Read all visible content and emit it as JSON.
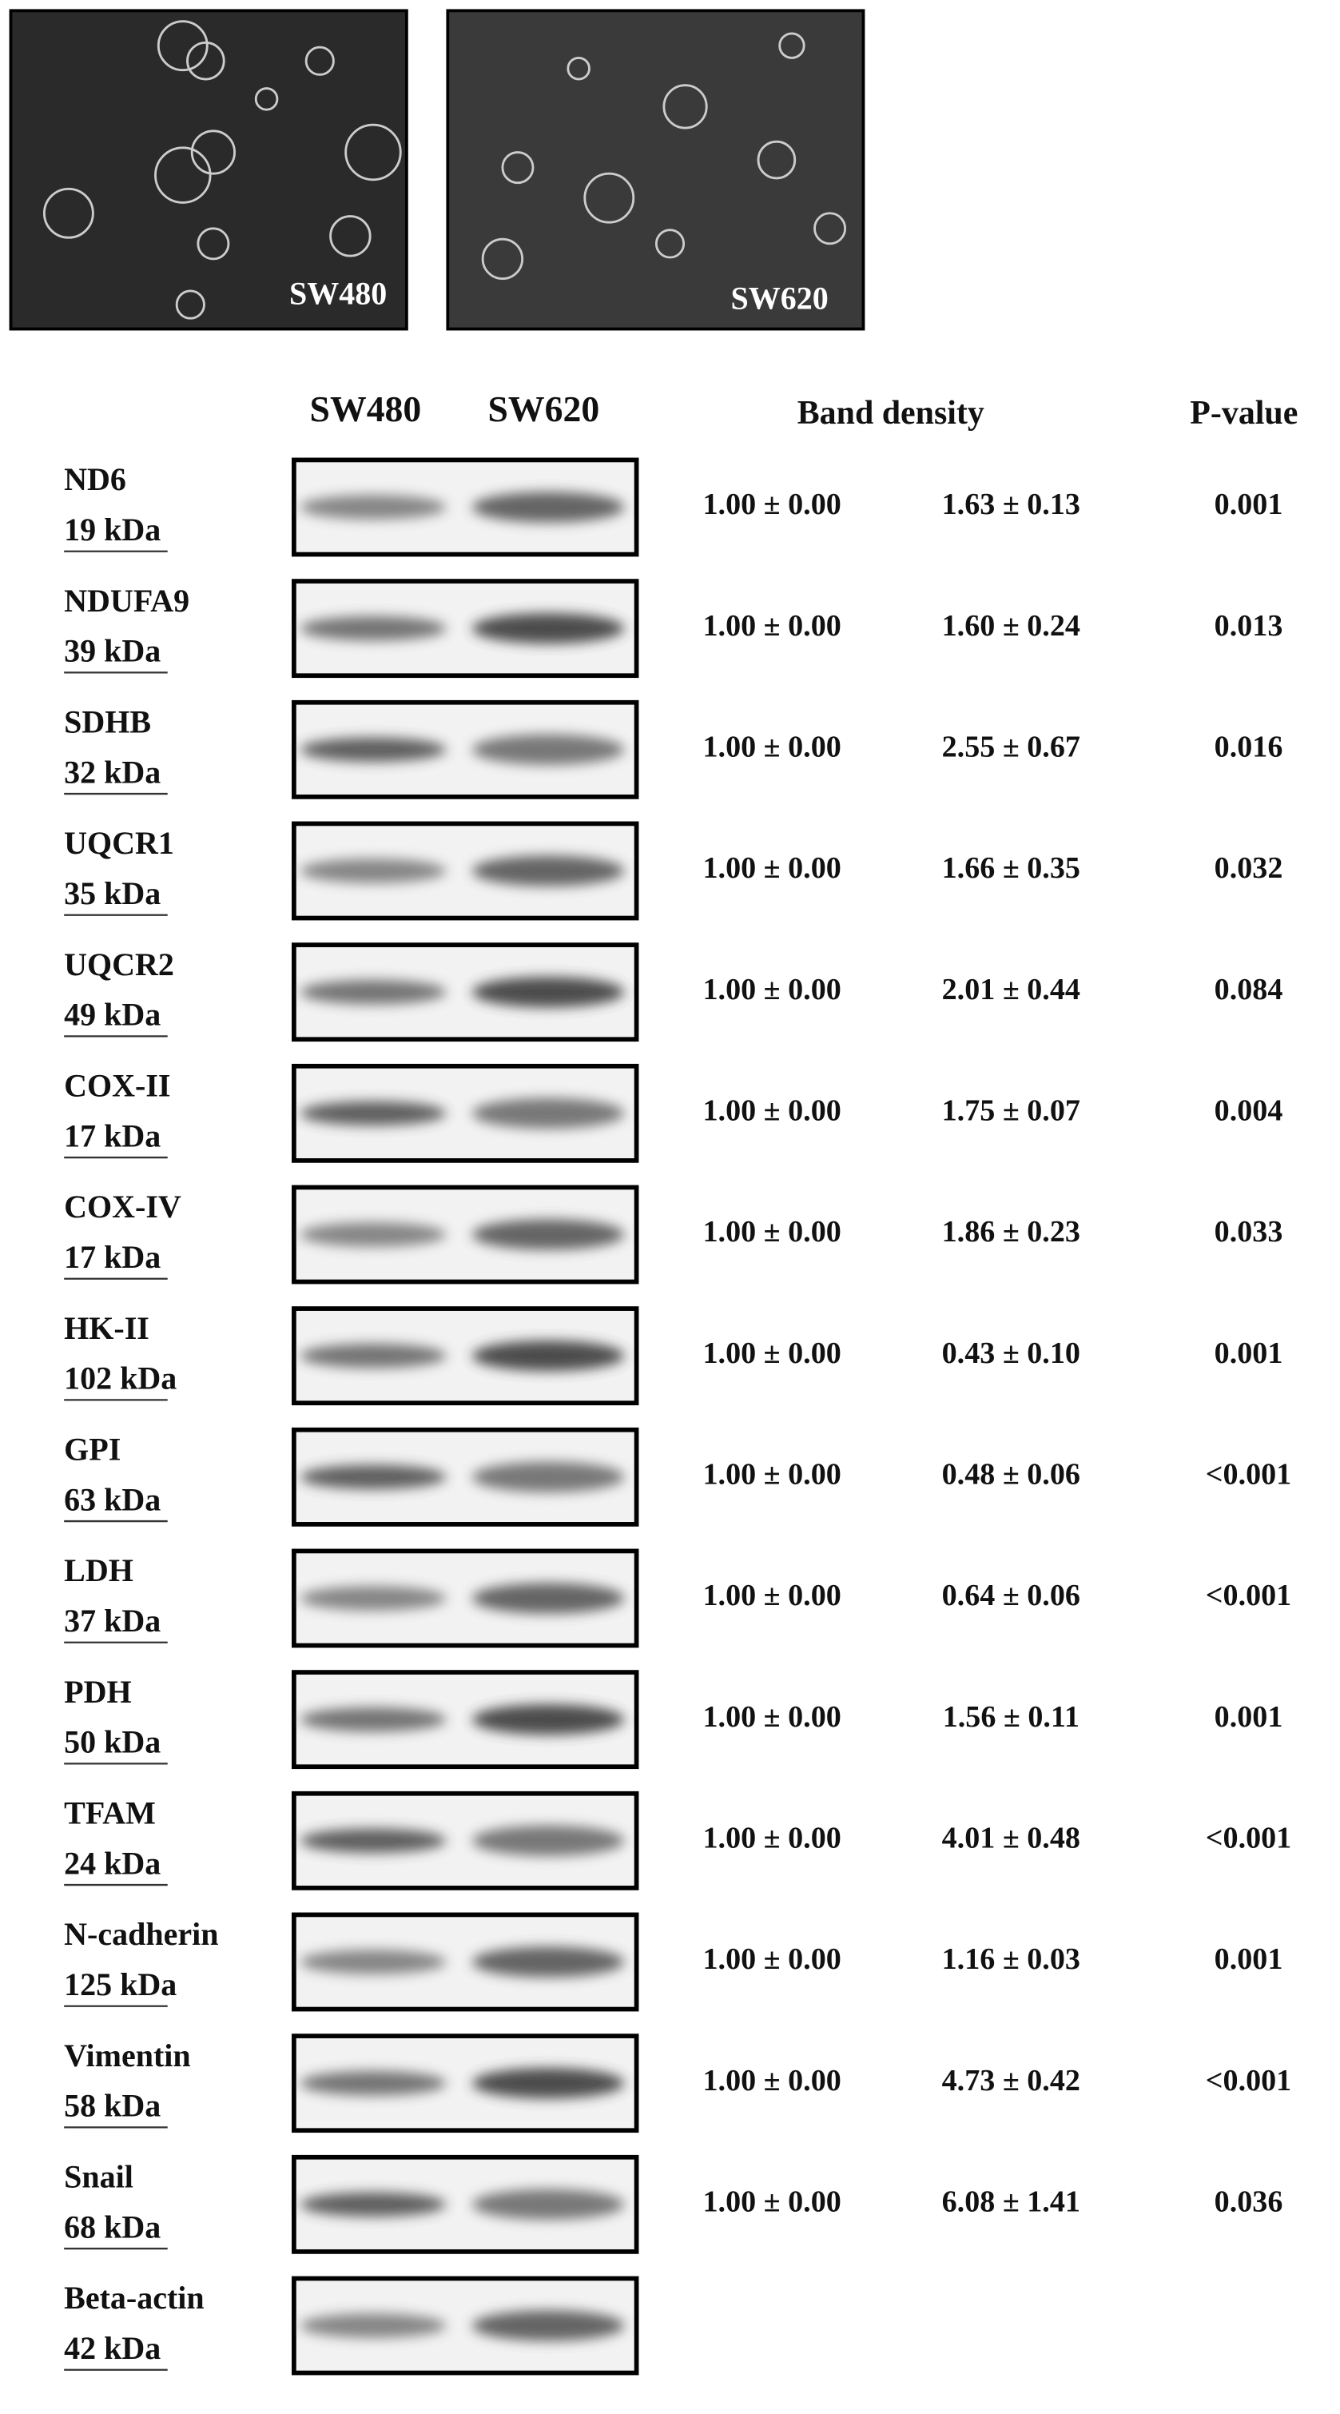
{
  "images": [
    {
      "label": "SW480"
    },
    {
      "label": "SW620"
    }
  ],
  "table": {
    "headers": {
      "col1": "SW480",
      "col2": "SW620",
      "density": "Band density",
      "p": "P-value"
    },
    "rows": [
      {
        "name": "ND6",
        "kda": "19 kDa",
        "sw480": "1.00 ± 0.00",
        "sw620": "1.63 ± 0.13",
        "p": "0.001"
      },
      {
        "name": "NDUFA9",
        "kda": "39 kDa",
        "sw480": "1.00 ± 0.00",
        "sw620": "1.60 ± 0.24",
        "p": "0.013"
      },
      {
        "name": "SDHB",
        "kda": "32 kDa",
        "sw480": "1.00 ± 0.00",
        "sw620": "2.55 ± 0.67",
        "p": "0.016"
      },
      {
        "name": "UQCR1",
        "kda": "35 kDa",
        "sw480": "1.00 ± 0.00",
        "sw620": "1.66 ± 0.35",
        "p": "0.032"
      },
      {
        "name": "UQCR2",
        "kda": "49 kDa",
        "sw480": "1.00 ± 0.00",
        "sw620": "2.01 ± 0.44",
        "p": "0.084"
      },
      {
        "name": "COX-II",
        "kda": "17 kDa",
        "sw480": "1.00 ± 0.00",
        "sw620": "1.75 ± 0.07",
        "p": "0.004"
      },
      {
        "name": "COX-IV",
        "kda": "17 kDa",
        "sw480": "1.00 ± 0.00",
        "sw620": "1.86 ± 0.23",
        "p": "0.033"
      },
      {
        "name": "HK-II",
        "kda": "102 kDa",
        "sw480": "1.00 ± 0.00",
        "sw620": "0.43 ± 0.10",
        "p": "0.001"
      },
      {
        "name": "GPI",
        "kda": "63 kDa",
        "sw480": "1.00 ± 0.00",
        "sw620": "0.48 ± 0.06",
        "p": "<0.001"
      },
      {
        "name": "LDH",
        "kda": "37 kDa",
        "sw480": "1.00 ± 0.00",
        "sw620": "0.64 ± 0.06",
        "p": "<0.001"
      },
      {
        "name": "PDH",
        "kda": "50 kDa",
        "sw480": "1.00 ± 0.00",
        "sw620": "1.56 ± 0.11",
        "p": "0.001"
      },
      {
        "name": "TFAM",
        "kda": "24 kDa",
        "sw480": "1.00 ± 0.00",
        "sw620": "4.01 ± 0.48",
        "p": "<0.001"
      },
      {
        "name": "N-cadherin",
        "kda": "125 kDa",
        "sw480": "1.00 ± 0.00",
        "sw620": "1.16 ± 0.03",
        "p": "0.001"
      },
      {
        "name": "Vimentin",
        "kda": "58 kDa",
        "sw480": "1.00 ± 0.00",
        "sw620": "4.73 ± 0.42",
        "p": "<0.001"
      },
      {
        "name": "Snail",
        "kda": "68 kDa",
        "sw480": "1.00 ± 0.00",
        "sw620": "6.08 ± 1.41",
        "p": "0.036"
      },
      {
        "name": "Beta-actin",
        "kda": "42 kDa"
      }
    ]
  }
}
